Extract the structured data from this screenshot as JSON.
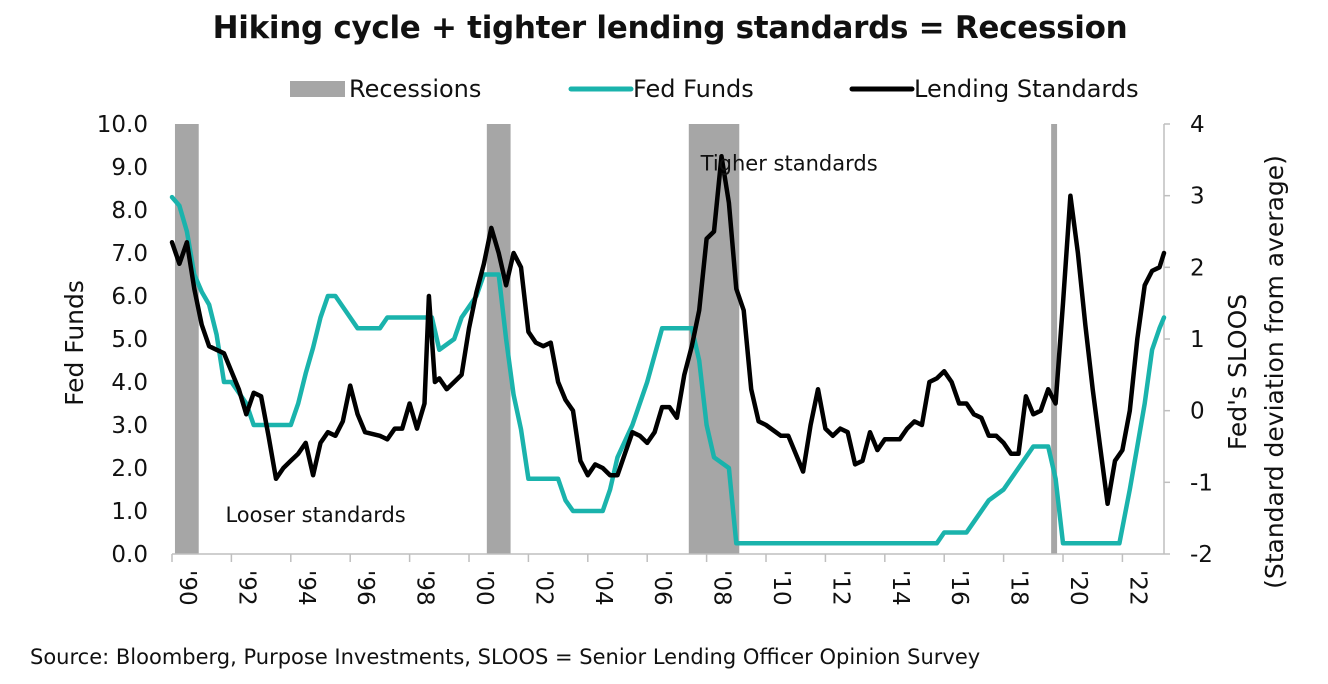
{
  "chart_data": {
    "type": "line",
    "title": "Hiking cycle + tighter lending standards = Recession",
    "source": "Source: Bloomberg, Purpose Investments, SLOOS = Senior Lending Officer Opinion Survey",
    "legend": {
      "placement": "top",
      "items": [
        {
          "label": "Recessions",
          "kind": "bar",
          "color": "#a6a6a6"
        },
        {
          "label": "Fed Funds",
          "kind": "line",
          "color": "#1ab3ac"
        },
        {
          "label": "Lending Standards",
          "kind": "line",
          "color": "#000000"
        }
      ]
    },
    "x_axis": {
      "range": [
        1990,
        2023.4
      ],
      "tick_values": [
        1990,
        1992,
        1994,
        1996,
        1998,
        2000,
        2002,
        2004,
        2006,
        2008,
        2010,
        2012,
        2014,
        2016,
        2018,
        2020,
        2022
      ],
      "tick_labels": [
        "'90",
        "'92",
        "'94",
        "'96",
        "'98",
        "'00",
        "'02",
        "'04",
        "'06",
        "'08",
        "'10",
        "'12",
        "'14",
        "'16",
        "'18",
        "'20",
        "'22"
      ]
    },
    "y_left": {
      "label": "Fed Funds",
      "range": [
        0,
        10
      ],
      "tick_values": [
        0,
        1,
        2,
        3,
        4,
        5,
        6,
        7,
        8,
        9,
        10
      ],
      "tick_labels": [
        "0.0",
        "1.0",
        "2.0",
        "3.0",
        "4.0",
        "5.0",
        "6.0",
        "7.0",
        "8.0",
        "9.0",
        "10.0"
      ]
    },
    "y_right": {
      "label_line1": "Fed's SLOOS",
      "label_line2": "(Standard deviation from average)",
      "range": [
        -2,
        4
      ],
      "tick_values": [
        -2,
        -1,
        0,
        1,
        2,
        3,
        4
      ],
      "tick_labels": [
        "-2",
        "-1",
        "0",
        "1",
        "2",
        "3",
        "4"
      ]
    },
    "grid": false,
    "recessions": [
      {
        "start": 1990.1,
        "end": 1990.9
      },
      {
        "start": 2000.6,
        "end": 2001.4
      },
      {
        "start": 2007.4,
        "end": 2009.1
      },
      {
        "start": 2019.6,
        "end": 2019.8
      }
    ],
    "annotations": [
      {
        "text": "Tigher standards",
        "x": 2007.8,
        "y_right": 3.35
      },
      {
        "text": "Looser standards",
        "x": 1991.8,
        "y_right": -1.55
      }
    ],
    "series": [
      {
        "name": "Fed Funds",
        "axis": "left",
        "color": "#1ab3ac",
        "points": [
          [
            1990.0,
            8.3
          ],
          [
            1990.25,
            8.1
          ],
          [
            1990.5,
            7.5
          ],
          [
            1990.75,
            6.5
          ],
          [
            1991.0,
            6.1
          ],
          [
            1991.25,
            5.8
          ],
          [
            1991.5,
            5.1
          ],
          [
            1991.75,
            4.0
          ],
          [
            1992.0,
            4.0
          ],
          [
            1992.5,
            3.5
          ],
          [
            1992.75,
            3.0
          ],
          [
            1993.0,
            3.0
          ],
          [
            1994.0,
            3.0
          ],
          [
            1994.25,
            3.5
          ],
          [
            1994.5,
            4.2
          ],
          [
            1994.75,
            4.8
          ],
          [
            1995.0,
            5.5
          ],
          [
            1995.25,
            6.0
          ],
          [
            1995.5,
            6.0
          ],
          [
            1996.0,
            5.5
          ],
          [
            1996.25,
            5.25
          ],
          [
            1997.0,
            5.25
          ],
          [
            1997.25,
            5.5
          ],
          [
            1998.75,
            5.5
          ],
          [
            1999.0,
            4.75
          ],
          [
            1999.5,
            5.0
          ],
          [
            1999.75,
            5.5
          ],
          [
            2000.0,
            5.75
          ],
          [
            2000.25,
            6.0
          ],
          [
            2000.5,
            6.5
          ],
          [
            2001.0,
            6.5
          ],
          [
            2001.25,
            5.0
          ],
          [
            2001.5,
            3.7
          ],
          [
            2001.75,
            2.9
          ],
          [
            2002.0,
            1.75
          ],
          [
            2003.0,
            1.75
          ],
          [
            2003.25,
            1.25
          ],
          [
            2003.5,
            1.0
          ],
          [
            2004.5,
            1.0
          ],
          [
            2004.75,
            1.5
          ],
          [
            2005.0,
            2.25
          ],
          [
            2005.5,
            3.0
          ],
          [
            2006.0,
            4.0
          ],
          [
            2006.5,
            5.25
          ],
          [
            2007.5,
            5.25
          ],
          [
            2007.75,
            4.5
          ],
          [
            2008.0,
            3.0
          ],
          [
            2008.25,
            2.25
          ],
          [
            2008.75,
            2.0
          ],
          [
            2009.0,
            0.25
          ],
          [
            2015.75,
            0.25
          ],
          [
            2016.0,
            0.5
          ],
          [
            2016.75,
            0.5
          ],
          [
            2017.0,
            0.75
          ],
          [
            2017.5,
            1.25
          ],
          [
            2018.0,
            1.5
          ],
          [
            2018.5,
            2.0
          ],
          [
            2019.0,
            2.5
          ],
          [
            2019.5,
            2.5
          ],
          [
            2019.75,
            1.75
          ],
          [
            2020.0,
            0.25
          ],
          [
            2021.9,
            0.25
          ],
          [
            2022.25,
            1.5
          ],
          [
            2022.5,
            2.5
          ],
          [
            2022.75,
            3.5
          ],
          [
            2023.0,
            4.75
          ],
          [
            2023.25,
            5.25
          ],
          [
            2023.4,
            5.5
          ]
        ]
      },
      {
        "name": "Lending Standards",
        "axis": "right",
        "color": "#000000",
        "points": [
          [
            1990.0,
            2.35
          ],
          [
            1990.25,
            2.05
          ],
          [
            1990.5,
            2.35
          ],
          [
            1990.75,
            1.7
          ],
          [
            1991.0,
            1.2
          ],
          [
            1991.25,
            0.9
          ],
          [
            1991.5,
            0.85
          ],
          [
            1991.75,
            0.8
          ],
          [
            1992.0,
            0.55
          ],
          [
            1992.25,
            0.3
          ],
          [
            1992.5,
            -0.05
          ],
          [
            1992.75,
            0.25
          ],
          [
            1993.0,
            0.2
          ],
          [
            1993.25,
            -0.35
          ],
          [
            1993.5,
            -0.95
          ],
          [
            1993.75,
            -0.8
          ],
          [
            1994.0,
            -0.7
          ],
          [
            1994.25,
            -0.6
          ],
          [
            1994.5,
            -0.45
          ],
          [
            1994.75,
            -0.9
          ],
          [
            1995.0,
            -0.45
          ],
          [
            1995.25,
            -0.3
          ],
          [
            1995.5,
            -0.35
          ],
          [
            1995.75,
            -0.15
          ],
          [
            1996.0,
            0.35
          ],
          [
            1996.25,
            -0.05
          ],
          [
            1996.5,
            -0.3
          ],
          [
            1997.0,
            -0.35
          ],
          [
            1997.25,
            -0.4
          ],
          [
            1997.5,
            -0.25
          ],
          [
            1997.75,
            -0.25
          ],
          [
            1998.0,
            0.1
          ],
          [
            1998.25,
            -0.25
          ],
          [
            1998.5,
            0.1
          ],
          [
            1998.65,
            1.6
          ],
          [
            1998.85,
            0.4
          ],
          [
            1999.0,
            0.45
          ],
          [
            1999.25,
            0.3
          ],
          [
            1999.5,
            0.4
          ],
          [
            1999.75,
            0.5
          ],
          [
            2000.0,
            1.15
          ],
          [
            2000.25,
            1.65
          ],
          [
            2000.5,
            2.05
          ],
          [
            2000.75,
            2.55
          ],
          [
            2001.0,
            2.2
          ],
          [
            2001.25,
            1.75
          ],
          [
            2001.5,
            2.2
          ],
          [
            2001.75,
            2.0
          ],
          [
            2002.0,
            1.1
          ],
          [
            2002.25,
            0.95
          ],
          [
            2002.5,
            0.9
          ],
          [
            2002.75,
            0.95
          ],
          [
            2003.0,
            0.4
          ],
          [
            2003.25,
            0.15
          ],
          [
            2003.5,
            0.0
          ],
          [
            2003.75,
            -0.7
          ],
          [
            2004.0,
            -0.9
          ],
          [
            2004.25,
            -0.75
          ],
          [
            2004.5,
            -0.8
          ],
          [
            2004.75,
            -0.9
          ],
          [
            2005.0,
            -0.9
          ],
          [
            2005.25,
            -0.6
          ],
          [
            2005.5,
            -0.3
          ],
          [
            2005.75,
            -0.35
          ],
          [
            2006.0,
            -0.45
          ],
          [
            2006.25,
            -0.3
          ],
          [
            2006.5,
            0.05
          ],
          [
            2006.75,
            0.05
          ],
          [
            2007.0,
            -0.1
          ],
          [
            2007.25,
            0.5
          ],
          [
            2007.5,
            0.9
          ],
          [
            2007.75,
            1.4
          ],
          [
            2008.0,
            2.4
          ],
          [
            2008.25,
            2.5
          ],
          [
            2008.5,
            3.55
          ],
          [
            2008.75,
            2.9
          ],
          [
            2009.0,
            1.7
          ],
          [
            2009.25,
            1.4
          ],
          [
            2009.5,
            0.3
          ],
          [
            2009.75,
            -0.15
          ],
          [
            2010.0,
            -0.2
          ],
          [
            2010.5,
            -0.35
          ],
          [
            2010.75,
            -0.35
          ],
          [
            2011.0,
            -0.6
          ],
          [
            2011.25,
            -0.85
          ],
          [
            2011.5,
            -0.2
          ],
          [
            2011.75,
            0.3
          ],
          [
            2012.0,
            -0.25
          ],
          [
            2012.25,
            -0.35
          ],
          [
            2012.5,
            -0.25
          ],
          [
            2012.75,
            -0.3
          ],
          [
            2013.0,
            -0.75
          ],
          [
            2013.25,
            -0.7
          ],
          [
            2013.5,
            -0.3
          ],
          [
            2013.75,
            -0.55
          ],
          [
            2014.0,
            -0.4
          ],
          [
            2014.5,
            -0.4
          ],
          [
            2014.75,
            -0.25
          ],
          [
            2015.0,
            -0.15
          ],
          [
            2015.25,
            -0.2
          ],
          [
            2015.5,
            0.4
          ],
          [
            2015.75,
            0.45
          ],
          [
            2016.0,
            0.55
          ],
          [
            2016.25,
            0.4
          ],
          [
            2016.5,
            0.1
          ],
          [
            2016.75,
            0.1
          ],
          [
            2017.0,
            -0.05
          ],
          [
            2017.25,
            -0.1
          ],
          [
            2017.5,
            -0.35
          ],
          [
            2017.75,
            -0.35
          ],
          [
            2018.0,
            -0.45
          ],
          [
            2018.25,
            -0.6
          ],
          [
            2018.5,
            -0.6
          ],
          [
            2018.75,
            0.2
          ],
          [
            2019.0,
            -0.05
          ],
          [
            2019.25,
            0.0
          ],
          [
            2019.5,
            0.3
          ],
          [
            2019.75,
            0.1
          ],
          [
            2020.0,
            1.5
          ],
          [
            2020.25,
            3.0
          ],
          [
            2020.5,
            2.2
          ],
          [
            2020.75,
            1.2
          ],
          [
            2021.0,
            0.3
          ],
          [
            2021.25,
            -0.5
          ],
          [
            2021.5,
            -1.3
          ],
          [
            2021.75,
            -0.7
          ],
          [
            2022.0,
            -0.55
          ],
          [
            2022.25,
            0.0
          ],
          [
            2022.5,
            1.0
          ],
          [
            2022.75,
            1.75
          ],
          [
            2023.0,
            1.95
          ],
          [
            2023.25,
            2.0
          ],
          [
            2023.4,
            2.2
          ]
        ]
      }
    ]
  }
}
